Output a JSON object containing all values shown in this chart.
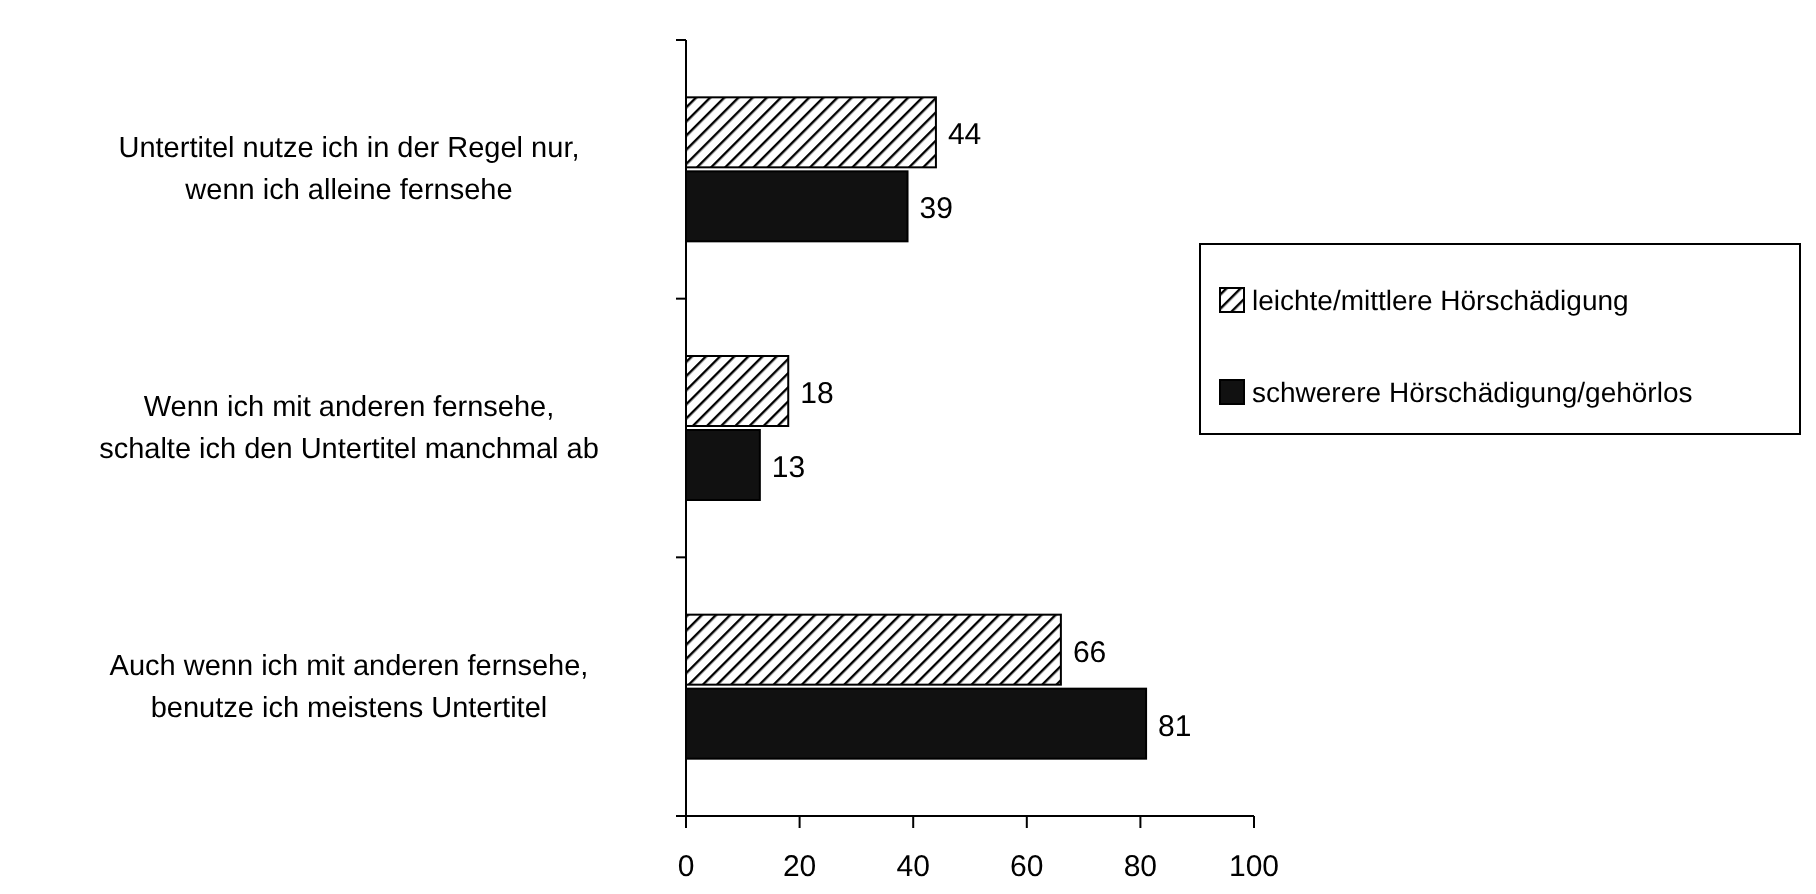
{
  "chart_data": {
    "type": "bar",
    "orientation": "horizontal",
    "categories": [
      "Untertitel nutze ich in der Regel nur, wenn ich alleine fernsehe",
      "Wenn ich mit anderen fernsehe, schalte ich den Untertitel manchmal ab",
      "Auch wenn ich mit anderen fernsehe, benutze ich meistens Untertitel"
    ],
    "series": [
      {
        "name": "leichte/mittlere Hörschädigung",
        "color": "#000000",
        "values": [
          44,
          18,
          66
        ]
      },
      {
        "name": "schwerere Hörschädigung/gehörlos",
        "color": "#111111",
        "values": [
          39,
          13,
          81
        ]
      }
    ],
    "xlim": [
      0,
      100
    ],
    "xticks": [
      0,
      20,
      40,
      60,
      80,
      100
    ],
    "data_labels": true,
    "legend": "right"
  }
}
